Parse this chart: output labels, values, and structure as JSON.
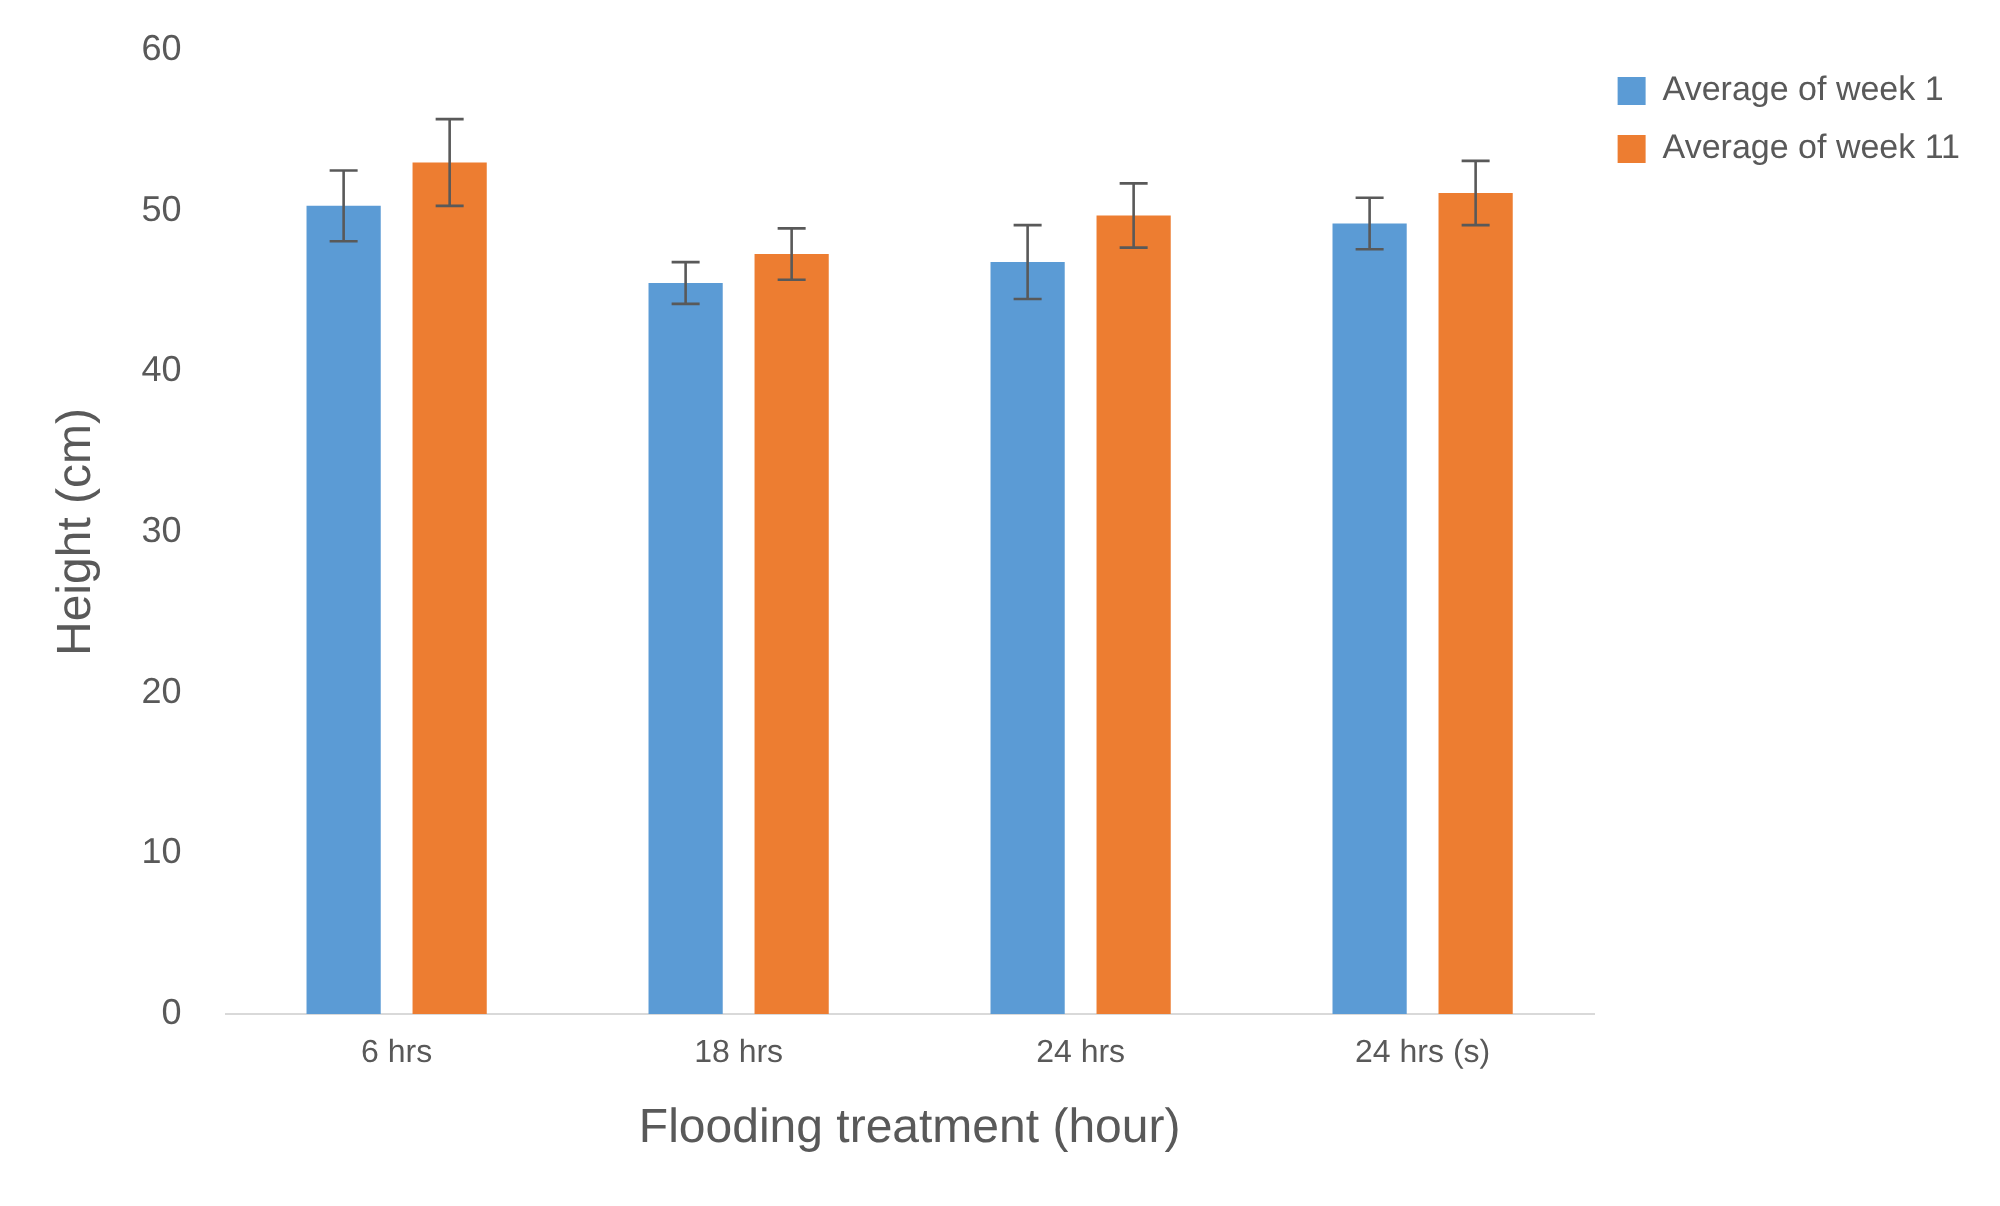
{
  "chart_data": {
    "type": "bar",
    "xlabel": "Flooding treatment (hour)",
    "ylabel": "Height (cm)",
    "categories": [
      "6 hrs",
      "18 hrs",
      "24 hrs",
      "24 hrs (s)"
    ],
    "series": [
      {
        "name": "Average of week 1",
        "color": "#5b9bd5",
        "values": [
          50.3,
          45.5,
          46.8,
          49.2
        ],
        "errors": [
          2.2,
          1.3,
          2.3,
          1.6
        ]
      },
      {
        "name": "Average of week 11",
        "color": "#ed7d31",
        "values": [
          53.0,
          47.3,
          49.7,
          51.1
        ],
        "errors": [
          2.7,
          1.6,
          2.0,
          2.0
        ]
      }
    ],
    "ylim": [
      0,
      60
    ],
    "yticks": [
      0,
      10,
      20,
      30,
      40,
      50,
      60
    ],
    "grid": false,
    "legend": "top right"
  }
}
